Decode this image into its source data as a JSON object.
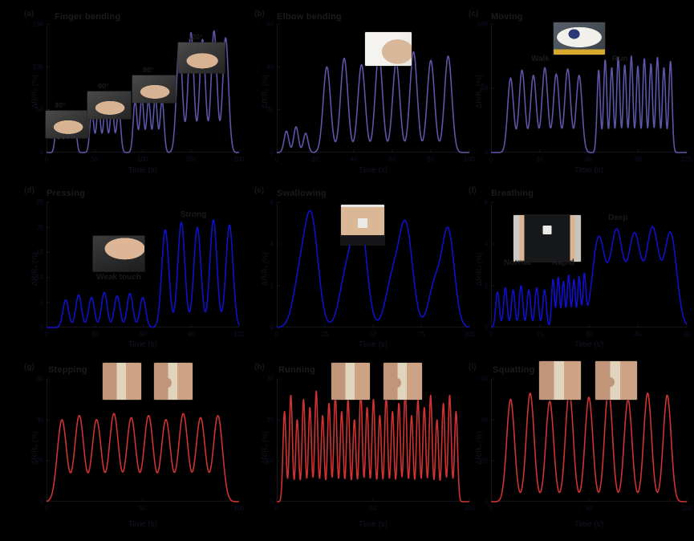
{
  "figure": {
    "background": "#000000",
    "title_color": "#1b1b1f",
    "tick_color": "#10102a",
    "axis_color": "#15151a",
    "row_colors": {
      "row1": "#5C55A8",
      "row2": "#1010CC",
      "row3": "#D03232"
    },
    "panels": [
      {
        "letter": "(a)",
        "title": "Finger bending",
        "xlabel": "Time (s)",
        "ylabel": "ΔR/R₀ (%)",
        "inset_labels": [
          "30°",
          "60°",
          "90°",
          "120°"
        ],
        "annotations": []
      },
      {
        "letter": "(b)",
        "title": "Elbow bending",
        "xlabel": "Time (s)",
        "ylabel": "ΔR/R₀ (%)",
        "inset_labels": [],
        "annotations": []
      },
      {
        "letter": "(c)",
        "title": "Moving",
        "xlabel": "Time (s)",
        "ylabel": "ΔR/R₀ (%)",
        "inset_labels": [],
        "annotations": [
          "Walk",
          "Run"
        ]
      },
      {
        "letter": "(d)",
        "title": "Pressing",
        "xlabel": "Time (s)",
        "ylabel": "ΔR/R₀ (%)",
        "inset_labels": [],
        "annotations": [
          "Weak touch",
          "Strong"
        ]
      },
      {
        "letter": "(e)",
        "title": "Swallowing",
        "xlabel": "Time (s)",
        "ylabel": "ΔR/R₀ (%)",
        "inset_labels": [],
        "annotations": []
      },
      {
        "letter": "(f)",
        "title": "Breathing",
        "xlabel": "Time (s)",
        "ylabel": "ΔR/R₀ (%)",
        "inset_labels": [],
        "annotations": [
          "Normal",
          "Rapid",
          "Deep"
        ]
      },
      {
        "letter": "(g)",
        "title": "Stepping",
        "xlabel": "Time (s)",
        "ylabel": "ΔR/R₀ (%)",
        "inset_labels": [],
        "annotations": []
      },
      {
        "letter": "(h)",
        "title": "Running",
        "xlabel": "Time (s)",
        "ylabel": "ΔR/R₀ (%)",
        "inset_labels": [],
        "annotations": []
      },
      {
        "letter": "(i)",
        "title": "Squatting",
        "xlabel": "Time (s)",
        "ylabel": "ΔR/R₀ (%)",
        "inset_labels": [],
        "annotations": []
      }
    ]
  },
  "chart_data": [
    {
      "panel": "a",
      "type": "line",
      "title": "Finger bending",
      "xlabel": "Time (s)",
      "ylabel": "ΔR/R₀ (%)",
      "color": "#5C55A8",
      "xlim": [
        0,
        200
      ],
      "ylim": [
        0,
        150
      ],
      "xticks": [
        0,
        50,
        100,
        150,
        200
      ],
      "yticks": [
        0,
        50,
        100,
        150
      ],
      "legend": "none",
      "grid": false,
      "peaks": [
        [
          10,
          26,
          1.6
        ],
        [
          15,
          29,
          1.6
        ],
        [
          20,
          27,
          1.6
        ],
        [
          25,
          30,
          1.6
        ],
        [
          30,
          28,
          1.6
        ],
        [
          47,
          50,
          2.0
        ],
        [
          54,
          54,
          2.0
        ],
        [
          61,
          51,
          2.0
        ],
        [
          68,
          55,
          2.0
        ],
        [
          75,
          52,
          2.0
        ],
        [
          92,
          60,
          2.0
        ],
        [
          99,
          64,
          2.0
        ],
        [
          106,
          61,
          2.0
        ],
        [
          113,
          65,
          2.0
        ],
        [
          120,
          62,
          2.0
        ],
        [
          138,
          128,
          3.0
        ],
        [
          150,
          140,
          3.0
        ],
        [
          162,
          132,
          3.0
        ],
        [
          174,
          142,
          3.0
        ],
        [
          186,
          134,
          3.0
        ]
      ]
    },
    {
      "panel": "b",
      "type": "line",
      "title": "Elbow bending",
      "xlabel": "Time (s)",
      "ylabel": "ΔR/R₀ (%)",
      "color": "#5C55A8",
      "xlim": [
        0,
        100
      ],
      "ylim": [
        0,
        60
      ],
      "xticks": [
        0,
        20,
        40,
        60,
        80,
        100
      ],
      "yticks": [
        0,
        20,
        40,
        60
      ],
      "legend": "none",
      "grid": false,
      "peaks": [
        [
          5,
          10,
          1.2
        ],
        [
          10,
          12,
          1.2
        ],
        [
          15,
          9,
          1.2
        ],
        [
          26,
          40,
          1.9
        ],
        [
          35,
          44,
          1.9
        ],
        [
          44,
          41,
          1.9
        ],
        [
          53,
          46,
          1.9
        ],
        [
          62,
          42,
          1.9
        ],
        [
          71,
          47,
          1.9
        ],
        [
          80,
          43,
          1.9
        ],
        [
          89,
          45,
          1.9
        ]
      ]
    },
    {
      "panel": "c",
      "type": "line",
      "title": "Moving",
      "xlabel": "Time (s)",
      "ylabel": "ΔR/R₀ (%)",
      "color": "#5C55A8",
      "xlim": [
        0,
        120
      ],
      "ylim": [
        0,
        100
      ],
      "xticks": [
        0,
        30,
        60,
        90,
        120
      ],
      "yticks": [
        0,
        50,
        100
      ],
      "legend": "none",
      "grid": false,
      "peaks": [
        [
          12,
          58,
          1.8
        ],
        [
          19,
          64,
          1.8
        ],
        [
          26,
          60,
          1.8
        ],
        [
          33,
          66,
          1.8
        ],
        [
          40,
          61,
          1.8
        ],
        [
          47,
          65,
          1.8
        ],
        [
          54,
          60,
          1.8
        ],
        [
          66,
          64,
          1.0
        ],
        [
          70,
          72,
          1.0
        ],
        [
          74,
          66,
          1.0
        ],
        [
          78,
          74,
          1.0
        ],
        [
          82,
          68,
          1.0
        ],
        [
          86,
          75,
          1.0
        ],
        [
          90,
          67,
          1.0
        ],
        [
          94,
          73,
          1.0
        ],
        [
          98,
          69,
          1.0
        ],
        [
          102,
          74,
          1.0
        ],
        [
          106,
          66,
          1.0
        ],
        [
          110,
          71,
          1.0
        ]
      ]
    },
    {
      "panel": "d",
      "type": "line",
      "title": "Pressing",
      "xlabel": "Time (s)",
      "ylabel": "ΔR/R₀ (%)",
      "color": "#1010CC",
      "xlim": [
        0,
        120
      ],
      "ylim": [
        0,
        25
      ],
      "xticks": [
        0,
        30,
        60,
        90,
        120
      ],
      "yticks": [
        0,
        5,
        10,
        15,
        20,
        25
      ],
      "legend": "none",
      "grid": false,
      "peaks": [
        [
          12,
          5.5,
          1.8
        ],
        [
          20,
          6.5,
          1.8
        ],
        [
          28,
          6.0,
          1.8
        ],
        [
          36,
          7.0,
          1.8
        ],
        [
          44,
          6.3,
          1.8
        ],
        [
          52,
          6.8,
          1.8
        ],
        [
          60,
          6.0,
          1.8
        ],
        [
          74,
          19.5,
          2.2
        ],
        [
          84,
          21,
          2.2
        ],
        [
          94,
          20,
          2.2
        ],
        [
          104,
          21.5,
          2.2
        ],
        [
          114,
          20.5,
          2.2
        ]
      ]
    },
    {
      "panel": "e",
      "type": "line",
      "title": "Swallowing",
      "xlabel": "Time (s)",
      "ylabel": "ΔR/R₀ (%)",
      "color": "#1010CC",
      "xlim": [
        0,
        100
      ],
      "ylim": [
        0,
        6
      ],
      "xticks": [
        0,
        25,
        50,
        75,
        100
      ],
      "yticks": [
        0,
        2,
        4,
        6
      ],
      "legend": "none",
      "grid": false,
      "peaks": [
        [
          12,
          2.2,
          3.5
        ],
        [
          18,
          5.0,
          3.5
        ],
        [
          36,
          2.4,
          3.5
        ],
        [
          43,
          5.4,
          3.5
        ],
        [
          60,
          2.2,
          3.5
        ],
        [
          67,
          4.8,
          3.5
        ],
        [
          82,
          2.0,
          3.2
        ],
        [
          89,
          4.6,
          3.2
        ]
      ]
    },
    {
      "panel": "f",
      "type": "line",
      "title": "Breathing",
      "xlabel": "Time (s)",
      "ylabel": "ΔR/R₀ (%)",
      "color": "#1010CC",
      "xlim": [
        0,
        60
      ],
      "ylim": [
        0,
        6
      ],
      "xticks": [
        0,
        15,
        30,
        45,
        60
      ],
      "yticks": [
        0,
        2,
        4,
        6
      ],
      "legend": "none",
      "grid": false,
      "peaks": [
        [
          2,
          1.7,
          0.55
        ],
        [
          4.4,
          1.9,
          0.55
        ],
        [
          6.8,
          1.8,
          0.55
        ],
        [
          9.2,
          2.0,
          0.55
        ],
        [
          11.6,
          1.8,
          0.55
        ],
        [
          14,
          1.9,
          0.55
        ],
        [
          16.4,
          1.8,
          0.55
        ],
        [
          19,
          2.3,
          0.45
        ],
        [
          20.6,
          2.4,
          0.45
        ],
        [
          22.2,
          2.2,
          0.45
        ],
        [
          23.8,
          2.5,
          0.45
        ],
        [
          25.4,
          2.3,
          0.45
        ],
        [
          27,
          2.4,
          0.45
        ],
        [
          28.6,
          2.3,
          0.45
        ],
        [
          33,
          4.3,
          1.9
        ],
        [
          38.5,
          4.6,
          1.9
        ],
        [
          44,
          4.4,
          1.9
        ],
        [
          49.5,
          4.7,
          1.9
        ],
        [
          55,
          4.5,
          1.9
        ]
      ]
    },
    {
      "panel": "g",
      "type": "line",
      "title": "Stepping",
      "xlabel": "Time (s)",
      "ylabel": "ΔR/R₀ (%)",
      "color": "#D03232",
      "xlim": [
        0,
        100
      ],
      "ylim": [
        0,
        60
      ],
      "xticks": [
        0,
        50,
        100
      ],
      "yticks": [
        0,
        20,
        40,
        60
      ],
      "legend": "none",
      "grid": false,
      "peaks": [
        [
          8,
          40,
          2.4
        ],
        [
          17,
          42,
          2.4
        ],
        [
          26,
          40,
          2.4
        ],
        [
          35,
          43,
          2.4
        ],
        [
          44,
          41,
          2.4
        ],
        [
          53,
          42,
          2.4
        ],
        [
          62,
          40,
          2.4
        ],
        [
          71,
          43,
          2.4
        ],
        [
          80,
          41,
          2.4
        ],
        [
          89,
          42,
          2.4
        ]
      ]
    },
    {
      "panel": "h",
      "type": "line",
      "title": "Running",
      "xlabel": "Time (s)",
      "ylabel": "ΔR/R₀ (%)",
      "color": "#D03232",
      "xlim": [
        0,
        100
      ],
      "ylim": [
        0,
        30
      ],
      "xticks": [
        0,
        50,
        100
      ],
      "yticks": [
        0,
        10,
        20,
        30
      ],
      "legend": "none",
      "grid": false,
      "peaks": [
        [
          4,
          22,
          0.8
        ],
        [
          7.3,
          26,
          0.8
        ],
        [
          10.6,
          20,
          0.8
        ],
        [
          13.9,
          25,
          0.8
        ],
        [
          17.2,
          23,
          0.8
        ],
        [
          20.5,
          27,
          0.8
        ],
        [
          23.8,
          21,
          0.8
        ],
        [
          27.1,
          24,
          0.8
        ],
        [
          30.4,
          26,
          0.8
        ],
        [
          33.7,
          22,
          0.8
        ],
        [
          37,
          25,
          0.8
        ],
        [
          40.3,
          20,
          0.8
        ],
        [
          43.6,
          27,
          0.8
        ],
        [
          46.9,
          23,
          0.8
        ],
        [
          50.2,
          25,
          0.8
        ],
        [
          53.5,
          21,
          0.8
        ],
        [
          56.8,
          26,
          0.8
        ],
        [
          60.1,
          22,
          0.8
        ],
        [
          63.4,
          24,
          0.8
        ],
        [
          66.7,
          27,
          0.8
        ],
        [
          70,
          21,
          0.8
        ],
        [
          73.3,
          25,
          0.8
        ],
        [
          76.6,
          23,
          0.8
        ],
        [
          79.9,
          26,
          0.8
        ],
        [
          83.2,
          20,
          0.8
        ],
        [
          86.5,
          24,
          0.8
        ],
        [
          89.8,
          26,
          0.8
        ],
        [
          93.1,
          22,
          0.8
        ]
      ]
    },
    {
      "panel": "i",
      "type": "line",
      "title": "Squatting",
      "xlabel": "Time (s)",
      "ylabel": "ΔR/R₀ (%)",
      "color": "#D03232",
      "xlim": [
        0,
        100
      ],
      "ylim": [
        0,
        60
      ],
      "xticks": [
        0,
        50,
        100
      ],
      "yticks": [
        0,
        20,
        40,
        60
      ],
      "legend": "none",
      "grid": false,
      "peaks": [
        [
          10,
          50,
          2.0
        ],
        [
          20,
          53,
          2.0
        ],
        [
          30,
          49,
          2.0
        ],
        [
          40,
          54,
          2.0
        ],
        [
          50,
          51,
          2.0
        ],
        [
          60,
          55,
          2.0
        ],
        [
          70,
          50,
          2.0
        ],
        [
          80,
          53,
          2.0
        ],
        [
          90,
          52,
          2.0
        ]
      ]
    }
  ]
}
